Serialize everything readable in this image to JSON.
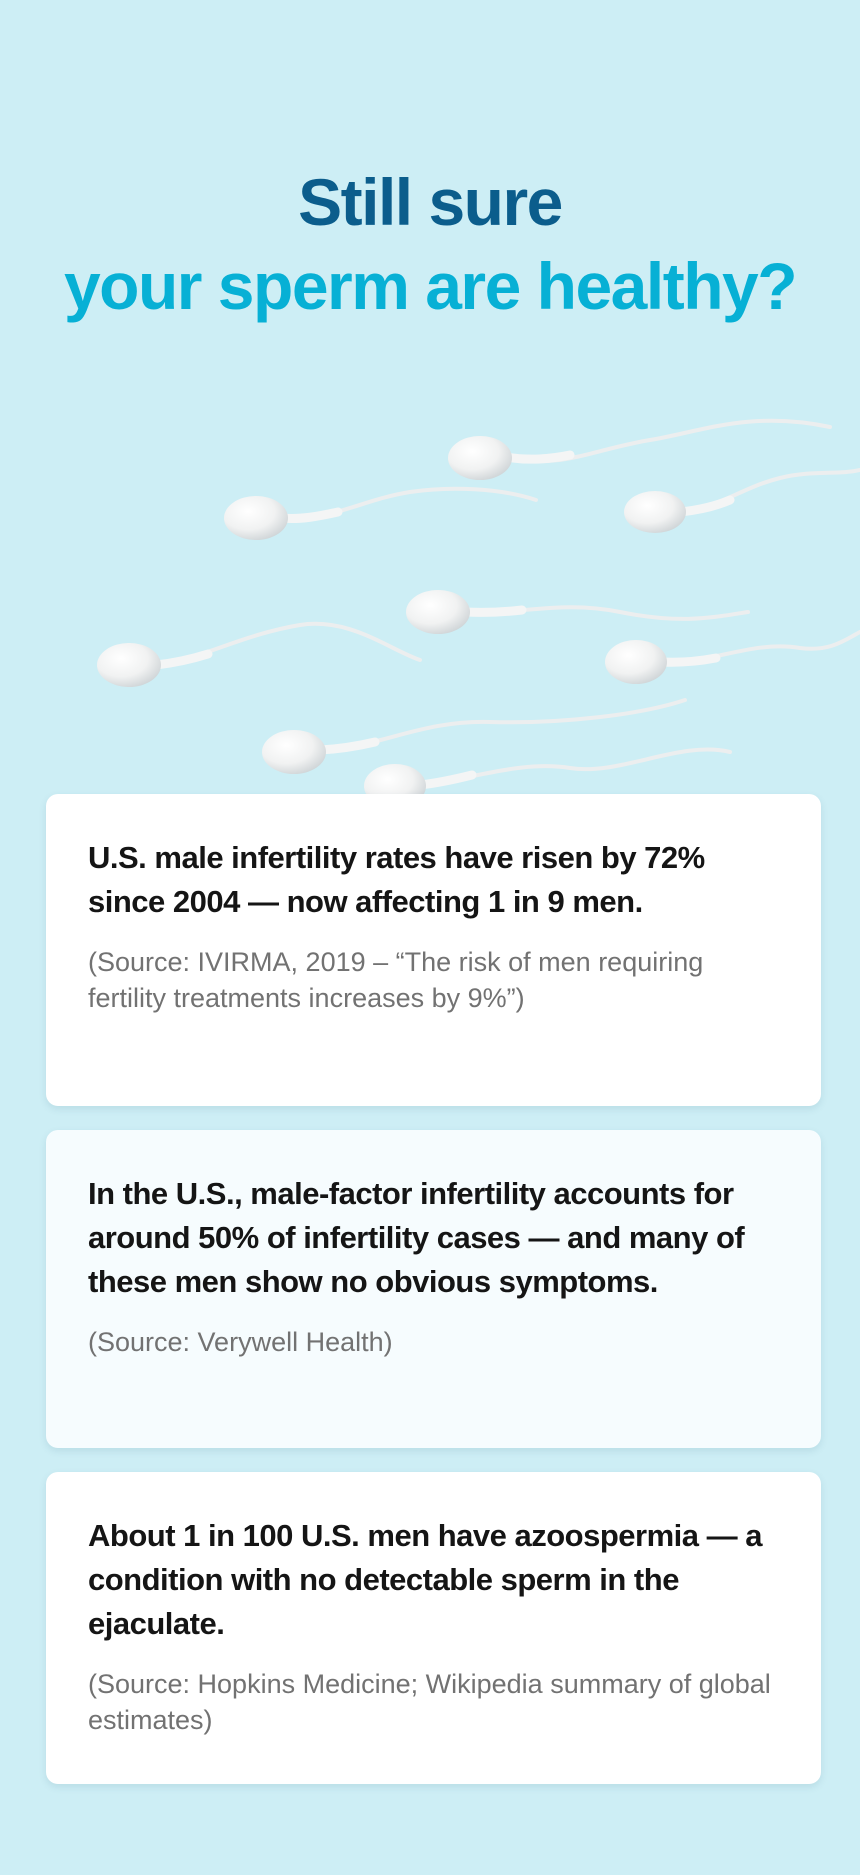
{
  "headline": {
    "line1": "Still sure",
    "line2": "your sperm are healthy?"
  },
  "colors": {
    "background": "#cdeef5",
    "headline_dark": "#0b5d8c",
    "headline_accent": "#07b0d5",
    "card": "#ffffff",
    "stat_text": "#151515",
    "source_text": "#727272"
  },
  "illustration": {
    "icon": "sperm-cells-illustration"
  },
  "cards": [
    {
      "stat": "U.S. male infertility rates have risen by 72% since 2004 — now affecting 1 in 9 men.",
      "source": "(Source: IVIRMA, 2019 – “The risk of men requiring fertility treatments increases by 9%”)"
    },
    {
      "stat": "In the U.S., male-factor infertility accounts for around 50% of infertility cases — and many of these men show no obvious symptoms.",
      "source": "(Source: Verywell Health)"
    },
    {
      "stat": "About 1 in 100 U.S. men have azoospermia — a condition with no detectable sperm in the ejaculate.",
      "source": "(Source: Hopkins Medicine; Wikipedia summary of global estimates)"
    }
  ]
}
